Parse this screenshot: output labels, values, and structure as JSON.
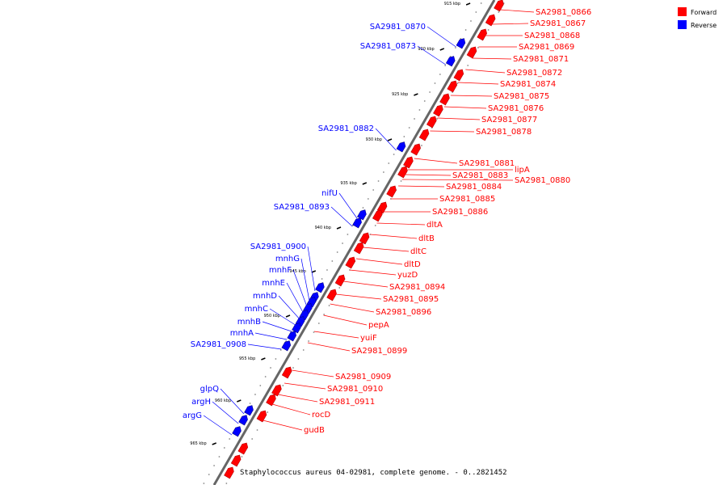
{
  "colors": {
    "forward": "#ff0000",
    "reverse": "#0000ff",
    "backbone": "#666666"
  },
  "legend": {
    "forward": "Forward",
    "reverse": "Reverse"
  },
  "caption": "Staphylococcus aureus 04-02981, complete genome. - 0..2821452",
  "ticks": [
    "915 kbp",
    "920 kbp",
    "925 kbp",
    "930 kbp",
    "935 kbp",
    "940 kbp",
    "945 kbp",
    "950 kbp",
    "955 kbp",
    "960 kbp",
    "965 kbp"
  ],
  "forward_labels": [
    "SA2981_0866",
    "SA2981_0867",
    "SA2981_0868",
    "SA2981_0869",
    "SA2981_0871",
    "SA2981_0872",
    "SA2981_0874",
    "SA2981_0875",
    "SA2981_0876",
    "SA2981_0877",
    "SA2981_0878",
    "SA2981_0881",
    "lipA",
    "SA2981_0883",
    "SA2981_0880",
    "SA2981_0884",
    "SA2981_0885",
    "SA2981_0886",
    "dltA",
    "dltB",
    "dltC",
    "dltD",
    "yuzD",
    "SA2981_0894",
    "SA2981_0895",
    "SA2981_0896",
    "pepA",
    "yuiF",
    "SA2981_0899",
    "SA2981_0909",
    "SA2981_0910",
    "SA2981_0911",
    "rocD",
    "gudB"
  ],
  "reverse_labels": [
    "SA2981_0870",
    "SA2981_0873",
    "SA2981_0882",
    "nifU",
    "SA2981_0893",
    "SA2981_0900",
    "mnhG",
    "mnhF",
    "mnhE",
    "mnhD",
    "mnhC",
    "mnhB",
    "mnhA",
    "SA2981_0908",
    "glpQ",
    "argH",
    "argG"
  ]
}
